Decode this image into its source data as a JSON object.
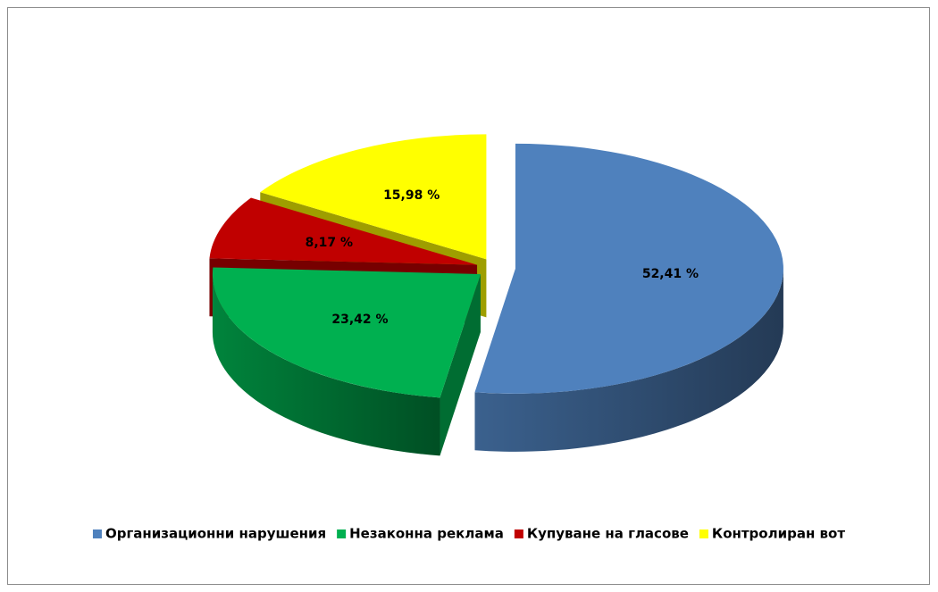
{
  "chart_data": {
    "type": "pie3d",
    "categories": [
      "Организационни нарушения",
      "Незаконна реклама",
      "Купуване на гласове",
      "Контролиран вот"
    ],
    "values": [
      52.41,
      23.42,
      8.17,
      15.98
    ],
    "value_labels": [
      "52,41 %",
      "23,42 %",
      "8,17 %",
      "15,98 %"
    ],
    "colors": [
      "#4f81bd",
      "#00b050",
      "#c00000",
      "#ffff00"
    ],
    "legend": "bottom"
  }
}
